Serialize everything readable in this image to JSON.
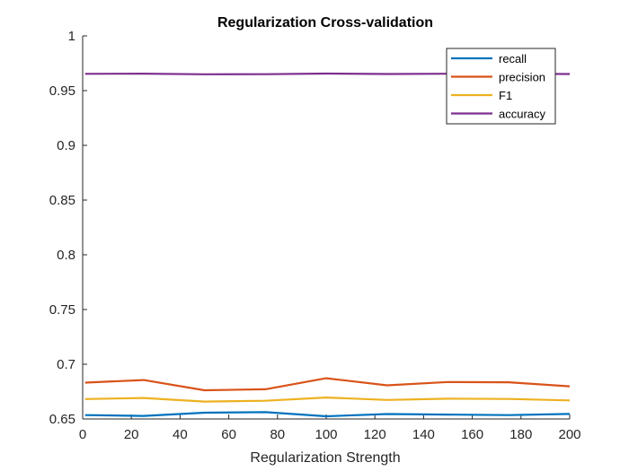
{
  "chart_data": {
    "type": "line",
    "title": "Regularization Cross-validation",
    "xlabel": "Regularization Strength",
    "ylabel": "",
    "xlim": [
      0,
      200
    ],
    "ylim": [
      0.65,
      1
    ],
    "xticks": [
      0,
      20,
      40,
      60,
      80,
      100,
      120,
      140,
      160,
      180,
      200
    ],
    "xtick_labels": [
      "0",
      "20",
      "40",
      "60",
      "80",
      "100",
      "120",
      "140",
      "160",
      "180",
      "200"
    ],
    "yticks": [
      0.65,
      0.7,
      0.75,
      0.8,
      0.85,
      0.9,
      0.95,
      1
    ],
    "ytick_labels": [
      "0.65",
      "0.7",
      "0.75",
      "0.8",
      "0.85",
      "0.9",
      "0.95",
      "1"
    ],
    "grid": false,
    "legend_position": "top-right",
    "x": [
      1,
      25,
      50,
      75,
      100,
      125,
      150,
      175,
      200
    ],
    "series": [
      {
        "name": "recall",
        "color": "#0072BD",
        "values": [
          0.6535,
          0.6528,
          0.6557,
          0.6562,
          0.6525,
          0.6545,
          0.654,
          0.6535,
          0.6546
        ]
      },
      {
        "name": "precision",
        "color": "#D95319",
        "values": [
          0.6832,
          0.6856,
          0.6762,
          0.6771,
          0.6872,
          0.6807,
          0.6838,
          0.6835,
          0.6798
        ]
      },
      {
        "name": "F1",
        "color": "#EDB120",
        "values": [
          0.6682,
          0.6692,
          0.6659,
          0.6666,
          0.6696,
          0.6674,
          0.6685,
          0.6683,
          0.667
        ]
      },
      {
        "name": "accuracy",
        "color": "#7E2F8E",
        "values": [
          0.9653,
          0.9655,
          0.9649,
          0.965,
          0.9656,
          0.9652,
          0.9654,
          0.9654,
          0.9652
        ]
      }
    ]
  }
}
